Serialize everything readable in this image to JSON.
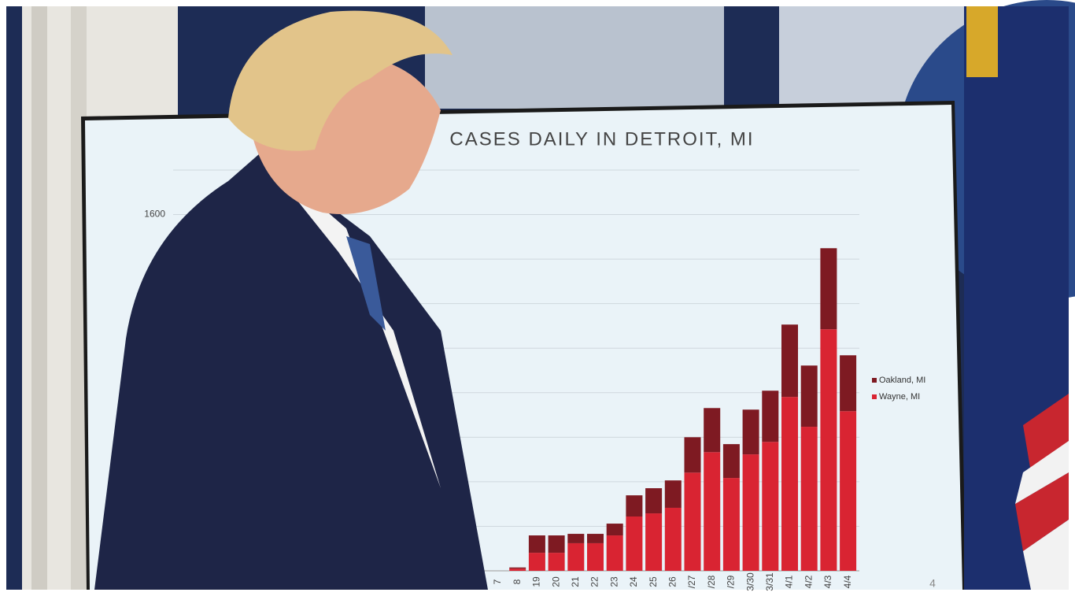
{
  "chart_data": {
    "type": "bar",
    "stacked": true,
    "title": "CASES DAILY IN DETROIT, MI",
    "categories": [
      "7",
      "8",
      "19",
      "20",
      "21",
      "22",
      "23",
      "24",
      "25",
      "26",
      "/27",
      "/28",
      "/29",
      "3/30",
      "3/31",
      "4/1",
      "4/2",
      "4/3",
      "4/4"
    ],
    "series": [
      {
        "name": "Oakland, MI",
        "color": "#7e1a22",
        "values": [
          0,
          5,
          78,
          78,
          42,
          42,
          53,
          95,
          113,
          123,
          159,
          198,
          152,
          201,
          230,
          325,
          275,
          364,
          251
        ]
      },
      {
        "name": "Wayne, MI",
        "color": "#d92432",
        "values": [
          0,
          10,
          81,
          81,
          124,
          124,
          159,
          244,
          258,
          283,
          441,
          533,
          417,
          523,
          579,
          781,
          647,
          1085,
          717
        ]
      }
    ],
    "ylim": [
      0,
      1800
    ],
    "yticks": [
      1600
    ],
    "grid_lines": [
      200,
      400,
      600,
      800,
      1000,
      1200,
      1400,
      1600,
      1800
    ],
    "grid": true,
    "legend": "right",
    "page_number": "4"
  }
}
